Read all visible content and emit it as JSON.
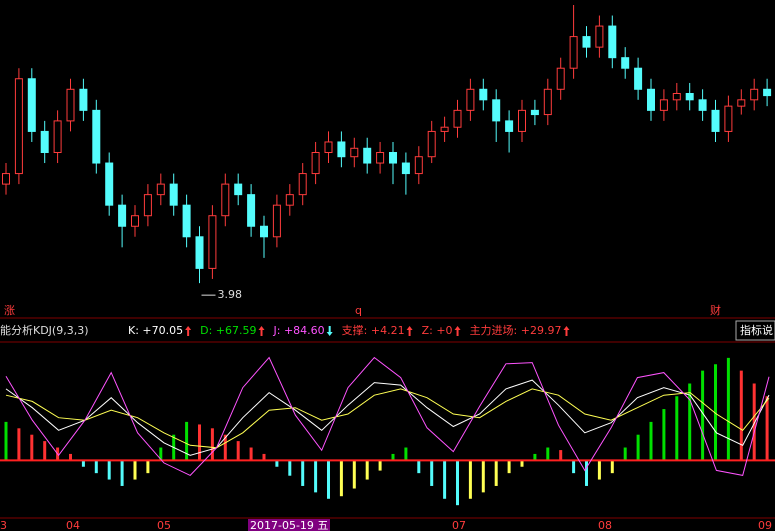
{
  "top_labels": [
    "涨",
    "q",
    "财"
  ],
  "x_labels": [
    "3",
    "04",
    "05",
    "2017-05-19 五",
    "07",
    "08",
    "09"
  ],
  "indicator_button": "指标说",
  "price_chart": {
    "type": "candlestick",
    "open": [
      4.45,
      4.5,
      4.95,
      4.7,
      4.6,
      4.75,
      4.9,
      4.8,
      4.55,
      4.35,
      4.25,
      4.3,
      4.4,
      4.45,
      4.35,
      4.2,
      4.05,
      4.3,
      4.45,
      4.4,
      4.25,
      4.2,
      4.35,
      4.4,
      4.5,
      4.6,
      4.65,
      4.58,
      4.62,
      4.55,
      4.6,
      4.55,
      4.5,
      4.58,
      4.7,
      4.72,
      4.8,
      4.9,
      4.85,
      4.75,
      4.7,
      4.8,
      4.78,
      4.9,
      5.0,
      5.15,
      5.1,
      5.2,
      5.05,
      5.0,
      4.9,
      4.8,
      4.85,
      4.88,
      4.85,
      4.8,
      4.7,
      4.82,
      4.85,
      4.9
    ],
    "high": [
      4.55,
      5.0,
      5.0,
      4.75,
      4.8,
      4.95,
      4.95,
      4.85,
      4.6,
      4.4,
      4.35,
      4.45,
      4.5,
      4.5,
      4.4,
      4.25,
      4.35,
      4.5,
      4.5,
      4.45,
      4.3,
      4.4,
      4.45,
      4.55,
      4.65,
      4.7,
      4.7,
      4.67,
      4.67,
      4.65,
      4.65,
      4.6,
      4.63,
      4.75,
      4.77,
      4.85,
      4.95,
      4.95,
      4.9,
      4.8,
      4.85,
      4.85,
      4.95,
      5.05,
      5.3,
      5.2,
      5.25,
      5.25,
      5.1,
      5.05,
      4.95,
      4.9,
      4.93,
      4.93,
      4.9,
      4.85,
      4.87,
      4.9,
      4.95,
      4.95
    ],
    "low": [
      4.4,
      4.45,
      4.65,
      4.55,
      4.55,
      4.7,
      4.75,
      4.5,
      4.3,
      4.15,
      4.2,
      4.25,
      4.35,
      4.3,
      4.15,
      3.98,
      4.0,
      4.25,
      4.35,
      4.2,
      4.1,
      4.15,
      4.3,
      4.35,
      4.45,
      4.55,
      4.53,
      4.53,
      4.5,
      4.5,
      4.45,
      4.4,
      4.45,
      4.55,
      4.65,
      4.67,
      4.75,
      4.8,
      4.65,
      4.6,
      4.65,
      4.73,
      4.73,
      4.85,
      4.95,
      5.05,
      5.05,
      5.0,
      4.95,
      4.85,
      4.75,
      4.75,
      4.8,
      4.8,
      4.75,
      4.65,
      4.65,
      4.78,
      4.8,
      4.82
    ],
    "close": [
      4.5,
      4.95,
      4.7,
      4.6,
      4.75,
      4.9,
      4.8,
      4.55,
      4.35,
      4.25,
      4.3,
      4.4,
      4.45,
      4.35,
      4.2,
      4.05,
      4.3,
      4.45,
      4.4,
      4.25,
      4.2,
      4.35,
      4.4,
      4.5,
      4.6,
      4.65,
      4.58,
      4.62,
      4.55,
      4.6,
      4.55,
      4.5,
      4.58,
      4.7,
      4.72,
      4.8,
      4.9,
      4.85,
      4.75,
      4.7,
      4.8,
      4.78,
      4.9,
      5.0,
      5.15,
      5.1,
      5.2,
      5.05,
      5.0,
      4.9,
      4.8,
      4.85,
      4.88,
      4.85,
      4.8,
      4.7,
      4.82,
      4.85,
      4.9,
      4.87
    ],
    "ylim": [
      3.9,
      5.3
    ],
    "up_color": "#ff3c3c",
    "down_color": "#54fcfc",
    "low_marker": 3.98
  },
  "indicator_chart": {
    "type": "line",
    "title": "能分析KDJ(9,3,3)",
    "readouts": [
      {
        "text": "K: +70.05",
        "color": "#ffffff",
        "trend": "up"
      },
      {
        "text": "D: +67.59",
        "color": "#00e000",
        "trend": "up"
      },
      {
        "text": "J: +84.60",
        "color": "#ff54ff",
        "trend": "down"
      },
      {
        "text": "支撑: +4.21",
        "color": "#ff3c3c",
        "trend": "up"
      },
      {
        "text": "Z: +0",
        "color": "#ff3c3c",
        "trend": "up"
      },
      {
        "text": "主力进场: +29.97",
        "color": "#ff3c3c",
        "trend": "up"
      }
    ],
    "series": [
      {
        "color": "#ffffff",
        "values": [
          75,
          60,
          42,
          50,
          68,
          48,
          32,
          22,
          28,
          52,
          72,
          58,
          42,
          62,
          80,
          78,
          60,
          45,
          55,
          75,
          82,
          62,
          40,
          48,
          68,
          76,
          70,
          40,
          30,
          70.05
        ]
      },
      {
        "color": "#ffff54",
        "values": [
          70,
          65,
          52,
          50,
          58,
          52,
          40,
          30,
          28,
          40,
          58,
          60,
          50,
          55,
          70,
          75,
          68,
          55,
          52,
          65,
          75,
          70,
          55,
          50,
          60,
          70,
          72,
          55,
          42,
          67.59
        ]
      },
      {
        "color": "#ff54ff",
        "values": [
          85,
          50,
          22,
          50,
          88,
          40,
          16,
          6,
          28,
          76,
          100,
          54,
          26,
          76,
          100,
          84,
          44,
          25,
          61,
          95,
          96,
          46,
          10,
          44,
          84,
          88,
          66,
          10,
          6,
          84.6
        ]
      }
    ],
    "ylim": [
      -20,
      110
    ],
    "histogram": {
      "values": [
        0.3,
        0.25,
        0.2,
        0.15,
        0.1,
        0.05,
        -0.05,
        -0.1,
        -0.15,
        -0.2,
        -0.15,
        -0.1,
        0.1,
        0.2,
        0.3,
        0.28,
        0.25,
        0.2,
        0.15,
        0.1,
        0.05,
        -0.05,
        -0.12,
        -0.2,
        -0.25,
        -0.3,
        -0.28,
        -0.22,
        -0.15,
        -0.08,
        0.05,
        0.1,
        -0.1,
        -0.2,
        -0.3,
        -0.35,
        -0.3,
        -0.25,
        -0.2,
        -0.1,
        -0.05,
        0.05,
        0.1,
        0.08,
        -0.1,
        -0.2,
        -0.15,
        -0.1,
        0.1,
        0.2,
        0.3,
        0.4,
        0.5,
        0.6,
        0.7,
        0.75,
        0.8,
        0.7,
        0.6,
        0.5
      ],
      "ylim": [
        -0.45,
        0.9
      ],
      "pos_rising": "#00e000",
      "pos_falling": "#ff3232",
      "neg_deepening": "#54fcfc",
      "neg_easing": "#ffff54",
      "zero_color": "#ff2020"
    }
  }
}
